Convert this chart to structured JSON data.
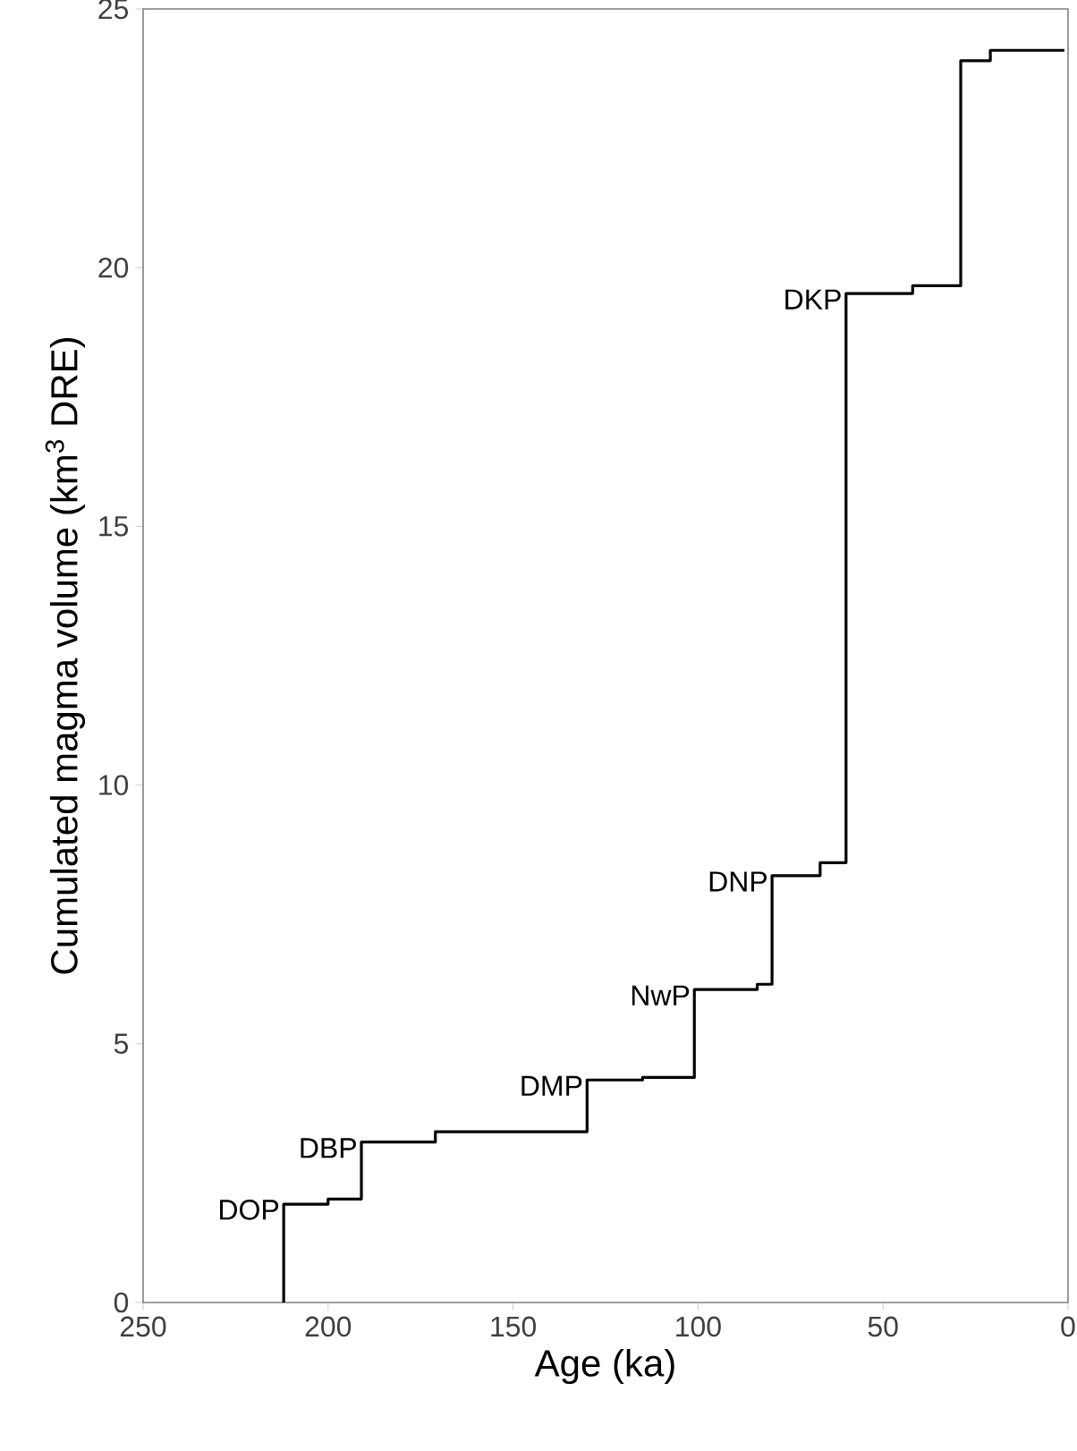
{
  "chart_data": {
    "type": "step",
    "xlabel": "Age (ka)",
    "ylabel": "Cumulated magma volume (km$^{3}$ DRE)",
    "x": [
      212,
      212,
      200,
      191,
      171,
      130,
      115,
      101,
      84,
      80,
      67,
      60,
      42,
      29,
      21,
      1
    ],
    "values": [
      0,
      1.9,
      2.0,
      3.1,
      3.3,
      4.3,
      4.35,
      6.05,
      6.15,
      8.25,
      8.5,
      19.5,
      19.65,
      24.0,
      24.2,
      24.2
    ],
    "color": "#000000",
    "xlim": [
      250,
      0
    ],
    "ylim": [
      0,
      25
    ],
    "xticks": [
      250,
      200,
      150,
      100,
      50,
      0
    ],
    "yticks": [
      0,
      5,
      10,
      15,
      20,
      25
    ],
    "grid": false,
    "annotations": [
      {
        "text": "DOP",
        "x": 212,
        "y": 1.9
      },
      {
        "text": "DBP",
        "x": 191,
        "y": 3.1
      },
      {
        "text": "DMP",
        "x": 130,
        "y": 4.3
      },
      {
        "text": "NwP",
        "x": 101,
        "y": 6.05
      },
      {
        "text": "DNP",
        "x": 80,
        "y": 8.25
      },
      {
        "text": "DKP",
        "x": 60,
        "y": 19.5
      }
    ]
  }
}
